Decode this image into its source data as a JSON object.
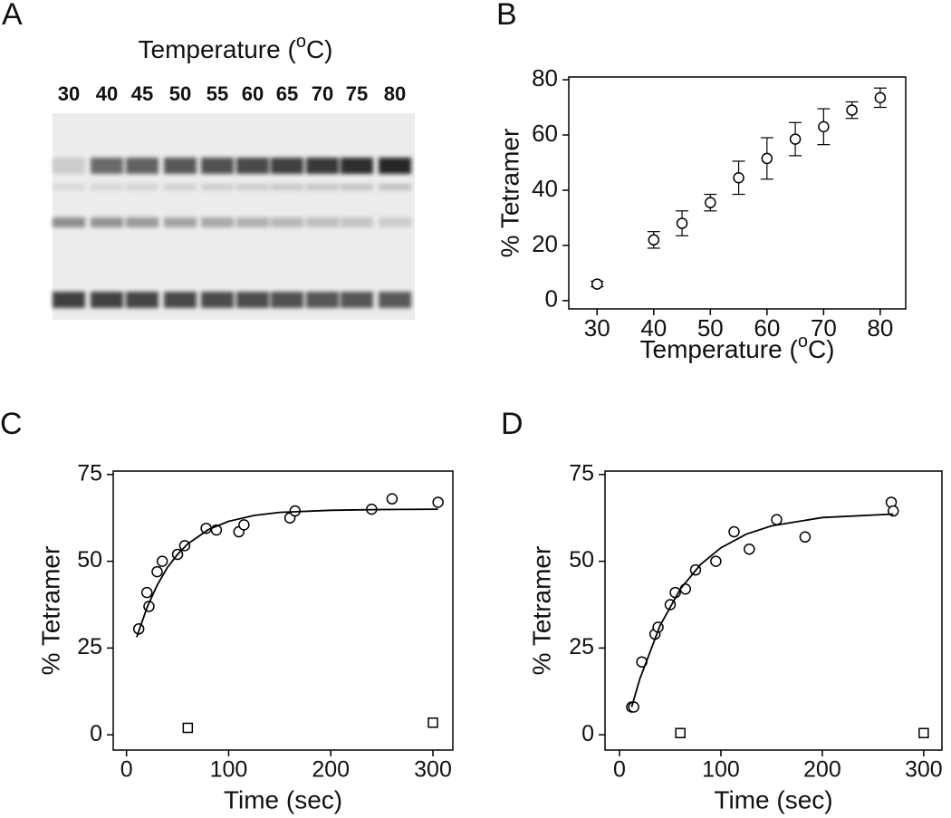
{
  "gel": {
    "panel_label": "A",
    "title": [
      "Temperature (",
      "o",
      "C)"
    ],
    "lanes": [
      30,
      40,
      45,
      50,
      55,
      60,
      65,
      70,
      75,
      80
    ]
  },
  "chart_data": [
    {
      "type": "errorbar",
      "panel_label": "B",
      "x_label": [
        "Temperature (",
        "o",
        "C)"
      ],
      "y_label": "% Tetramer",
      "x": [
        30,
        40,
        45,
        50,
        55,
        60,
        65,
        70,
        75,
        80
      ],
      "values": [
        6,
        22,
        28,
        35.5,
        44.5,
        51.5,
        58.5,
        63,
        69,
        73.5
      ],
      "errors": [
        1,
        3,
        4.5,
        3,
        6,
        7.5,
        6,
        6.5,
        3,
        3.5
      ],
      "color": "#000000",
      "xlim": [
        25,
        84.5
      ],
      "ylim": [
        -3,
        81
      ],
      "xticks": [
        30,
        40,
        50,
        60,
        70,
        80
      ],
      "yticks": [
        0,
        20,
        40,
        60,
        80
      ]
    },
    {
      "type": "scatter",
      "panel_label": "C",
      "x_label": "Time (sec)",
      "y_label": "% Tetramer",
      "series": [
        {
          "marker": "circle",
          "color": "#000000",
          "x": [
            12,
            20,
            22,
            30,
            35,
            50,
            57,
            78,
            88,
            110,
            115,
            160,
            165,
            240,
            260,
            305
          ],
          "values": [
            30.5,
            41,
            37,
            47,
            50,
            52,
            54.5,
            59.5,
            59,
            58.5,
            60.5,
            62.5,
            64.5,
            65,
            68,
            67
          ]
        },
        {
          "marker": "square",
          "color": "#000000",
          "x": [
            60,
            300
          ],
          "values": [
            2,
            3.5
          ]
        },
        {
          "marker": "line",
          "color": "#000000",
          "x": [
            10,
            20,
            30,
            40,
            50,
            60,
            80,
            100,
            125,
            150,
            200,
            250,
            305
          ],
          "values": [
            28.1,
            36.6,
            43.1,
            48.2,
            52,
            55,
            59.1,
            61.5,
            63.2,
            64.1,
            64.7,
            64.9,
            65
          ]
        }
      ],
      "xlim": [
        -13,
        319.5
      ],
      "ylim": [
        -4.4,
        76
      ],
      "xticks": [
        0,
        100,
        200,
        300
      ],
      "yticks": [
        0,
        25,
        50,
        75
      ]
    },
    {
      "type": "scatter",
      "panel_label": "D",
      "x_label": "Time (sec)",
      "y_label": "% Tetramer",
      "series": [
        {
          "marker": "circle",
          "color": "#000000",
          "x": [
            12,
            14,
            22,
            35,
            38,
            50,
            55,
            65,
            75,
            95,
            113,
            128,
            155,
            183,
            268,
            270
          ],
          "values": [
            8,
            8,
            21,
            29,
            31,
            37.5,
            41,
            42,
            47.5,
            50,
            58.5,
            53.5,
            62,
            57,
            67,
            64.5
          ]
        },
        {
          "marker": "square",
          "color": "#000000",
          "x": [
            60,
            300
          ],
          "values": [
            0.5,
            0.5
          ]
        },
        {
          "marker": "line",
          "color": "#000000",
          "x": [
            12,
            20,
            40,
            60,
            80,
            100,
            125,
            150,
            200,
            270
          ],
          "values": [
            8,
            16.1,
            31.5,
            42,
            49.1,
            53.9,
            57.8,
            60.2,
            62.6,
            63.6
          ]
        }
      ],
      "xlim": [
        -14.3,
        318
      ],
      "ylim": [
        -4.4,
        76
      ],
      "xticks": [
        0,
        100,
        200,
        300
      ],
      "yticks": [
        0,
        25,
        50,
        75
      ]
    }
  ]
}
